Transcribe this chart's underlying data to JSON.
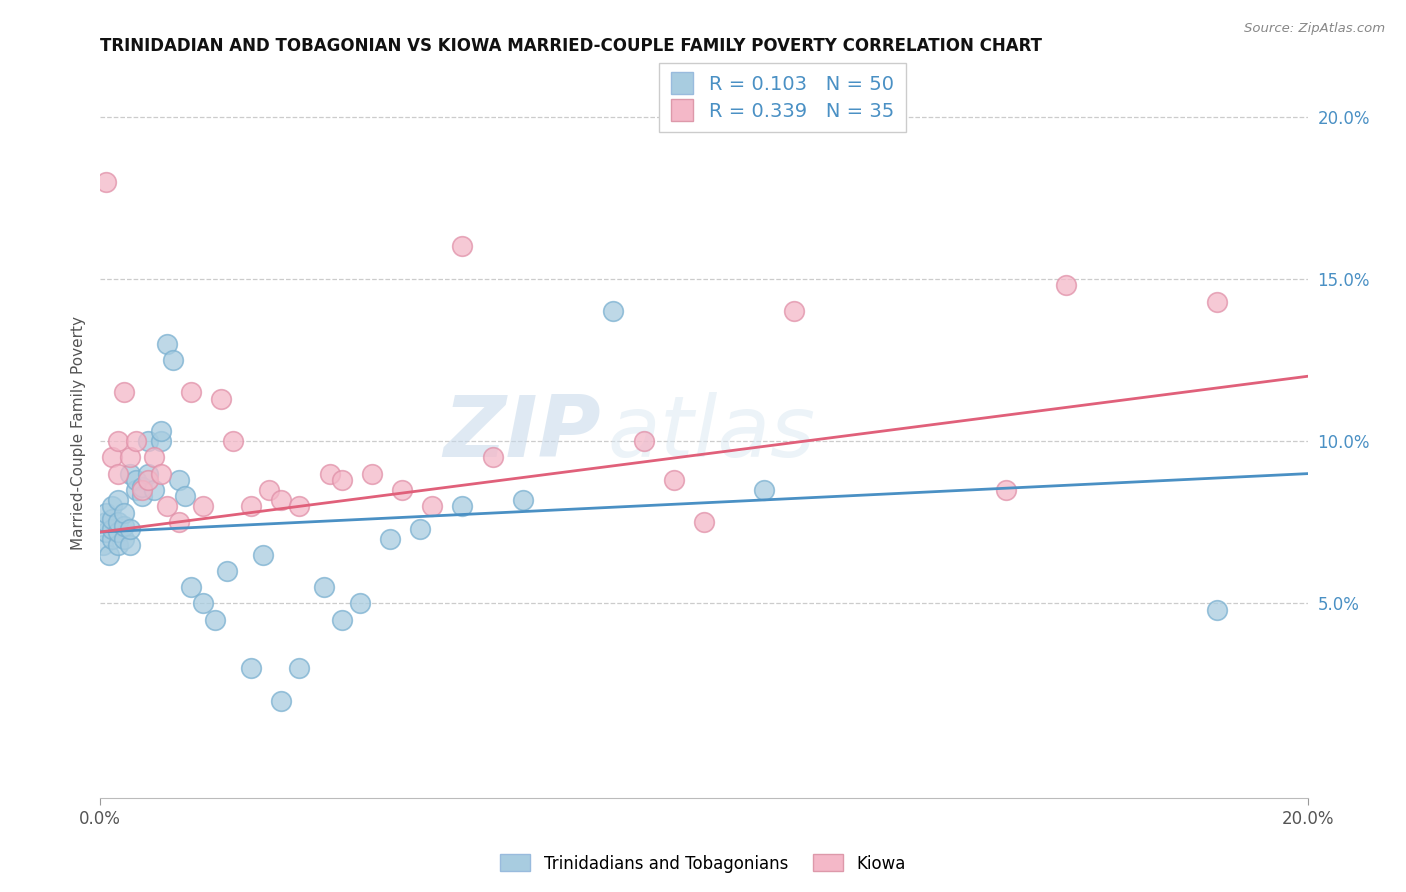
{
  "title": "TRINIDADIAN AND TOBAGONIAN VS KIOWA MARRIED-COUPLE FAMILY POVERTY CORRELATION CHART",
  "source": "Source: ZipAtlas.com",
  "ylabel": "Married-Couple Family Poverty",
  "watermark_zip": "ZIP",
  "watermark_atlas": "atlas",
  "legend_r1": "R = 0.103",
  "legend_n1": "N = 50",
  "legend_r2": "R = 0.339",
  "legend_n2": "N = 35",
  "legend_label1": "Trinidadians and Tobagonians",
  "legend_label2": "Kiowa",
  "color_blue": "#a8cce0",
  "color_pink": "#f4b8c8",
  "color_blue_line": "#4a90c4",
  "color_pink_line": "#e0607a",
  "color_legend_text": "#4a90c4",
  "xlim": [
    0.0,
    0.2
  ],
  "ylim": [
    -0.01,
    0.215
  ],
  "yticks": [
    0.05,
    0.1,
    0.15,
    0.2
  ],
  "ytick_labels": [
    "5.0%",
    "10.0%",
    "15.0%",
    "20.0%"
  ],
  "blue_x": [
    0.0005,
    0.001,
    0.001,
    0.001,
    0.0015,
    0.002,
    0.002,
    0.002,
    0.002,
    0.003,
    0.003,
    0.003,
    0.003,
    0.004,
    0.004,
    0.004,
    0.005,
    0.005,
    0.005,
    0.006,
    0.006,
    0.007,
    0.007,
    0.008,
    0.008,
    0.009,
    0.01,
    0.01,
    0.011,
    0.012,
    0.013,
    0.014,
    0.015,
    0.017,
    0.019,
    0.021,
    0.025,
    0.027,
    0.03,
    0.033,
    0.037,
    0.04,
    0.043,
    0.048,
    0.053,
    0.06,
    0.07,
    0.085,
    0.11,
    0.185
  ],
  "blue_y": [
    0.068,
    0.072,
    0.075,
    0.078,
    0.065,
    0.07,
    0.073,
    0.076,
    0.08,
    0.068,
    0.072,
    0.075,
    0.082,
    0.07,
    0.074,
    0.078,
    0.068,
    0.073,
    0.09,
    0.085,
    0.088,
    0.083,
    0.086,
    0.09,
    0.1,
    0.085,
    0.1,
    0.103,
    0.13,
    0.125,
    0.088,
    0.083,
    0.055,
    0.05,
    0.045,
    0.06,
    0.03,
    0.065,
    0.02,
    0.03,
    0.055,
    0.045,
    0.05,
    0.07,
    0.073,
    0.08,
    0.082,
    0.14,
    0.085,
    0.048
  ],
  "pink_x": [
    0.001,
    0.002,
    0.003,
    0.003,
    0.004,
    0.005,
    0.006,
    0.007,
    0.008,
    0.009,
    0.01,
    0.011,
    0.013,
    0.015,
    0.017,
    0.02,
    0.022,
    0.025,
    0.028,
    0.03,
    0.033,
    0.038,
    0.04,
    0.045,
    0.05,
    0.055,
    0.06,
    0.065,
    0.09,
    0.095,
    0.1,
    0.115,
    0.15,
    0.16,
    0.185
  ],
  "pink_y": [
    0.18,
    0.095,
    0.09,
    0.1,
    0.115,
    0.095,
    0.1,
    0.085,
    0.088,
    0.095,
    0.09,
    0.08,
    0.075,
    0.115,
    0.08,
    0.113,
    0.1,
    0.08,
    0.085,
    0.082,
    0.08,
    0.09,
    0.088,
    0.09,
    0.085,
    0.08,
    0.16,
    0.095,
    0.1,
    0.088,
    0.075,
    0.14,
    0.085,
    0.148,
    0.143
  ],
  "blue_line_x0": 0.0,
  "blue_line_y0": 0.072,
  "blue_line_x1": 0.2,
  "blue_line_y1": 0.09,
  "pink_line_x0": 0.0,
  "pink_line_y0": 0.072,
  "pink_line_x1": 0.2,
  "pink_line_y1": 0.12
}
